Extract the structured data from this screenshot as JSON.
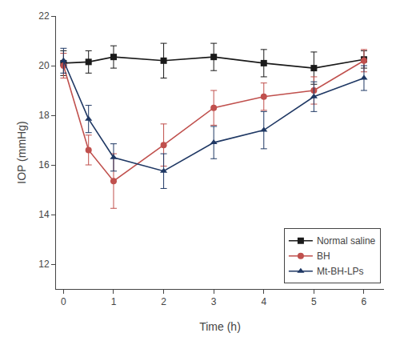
{
  "chart_data": {
    "type": "line",
    "x_label": "Time (h)",
    "y_label": "IOP (mmHg)",
    "x": [
      0,
      0.5,
      1,
      2,
      3,
      4,
      5,
      6
    ],
    "series": [
      {
        "name": "Normal saline",
        "color": "#1a1a1a",
        "marker": "square",
        "line_style": "solid",
        "values": [
          20.1,
          20.15,
          20.35,
          20.2,
          20.35,
          20.1,
          19.9,
          20.25
        ],
        "error": [
          0.5,
          0.45,
          0.45,
          0.7,
          0.55,
          0.55,
          0.65,
          0.35
        ]
      },
      {
        "name": "BH",
        "color": "#c0504d",
        "marker": "circle",
        "line_style": "solid",
        "values": [
          20.0,
          16.6,
          15.35,
          16.8,
          18.3,
          18.75,
          19.0,
          20.2
        ],
        "error": [
          0.5,
          0.6,
          1.1,
          0.85,
          0.7,
          0.55,
          0.55,
          0.45
        ]
      },
      {
        "name": "Mt-BH-LPs",
        "color": "#1f3864",
        "marker": "triangle-up",
        "line_style": "solid",
        "values": [
          20.2,
          17.85,
          16.3,
          15.75,
          16.9,
          17.4,
          18.75,
          19.5
        ],
        "error": [
          0.5,
          0.55,
          0.55,
          0.7,
          0.65,
          0.75,
          0.6,
          0.5
        ]
      }
    ],
    "xlim": [
      -0.15,
      6.4
    ],
    "ylim": [
      11,
      22
    ],
    "xticks": [
      0,
      1,
      2,
      3,
      4,
      5,
      6
    ],
    "yticks": [
      12,
      14,
      16,
      18,
      20,
      22
    ],
    "grid": false,
    "legend": "lower right"
  }
}
